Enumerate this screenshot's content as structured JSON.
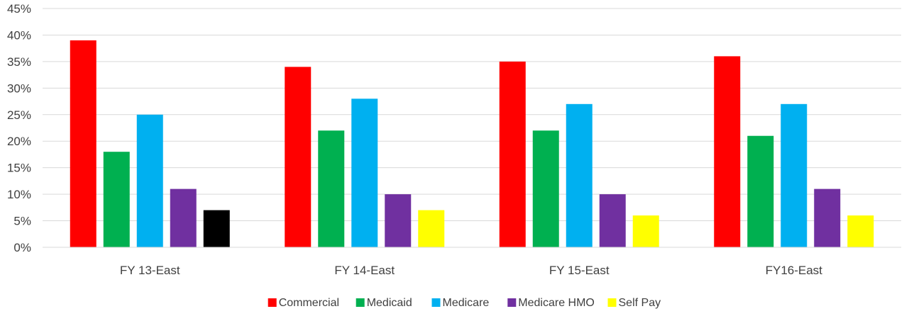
{
  "chart_data": {
    "type": "bar",
    "title": "",
    "xlabel": "",
    "ylabel": "",
    "ylim": [
      0,
      45
    ],
    "y_tick_step": 5,
    "y_tick_format": "percent",
    "grid": true,
    "legend_position": "bottom",
    "categories": [
      "FY 13-East",
      "FY 14-East",
      "FY 15-East",
      "FY16-East"
    ],
    "series": [
      {
        "name": "Commercial",
        "color": "#FF0000",
        "values": [
          39,
          34,
          35,
          36
        ]
      },
      {
        "name": "Medicaid",
        "color": "#00B050",
        "values": [
          18,
          22,
          22,
          21
        ]
      },
      {
        "name": "Medicare",
        "color": "#00B0F0",
        "values": [
          25,
          28,
          27,
          27
        ]
      },
      {
        "name": "Medicare HMO",
        "color": "#7030A0",
        "values": [
          11,
          10,
          10,
          11
        ]
      },
      {
        "name": "Self Pay",
        "color": "#FFFF00",
        "values": [
          7,
          7,
          6,
          6
        ],
        "point_colors": [
          "#000000",
          "#FFFF00",
          "#FFFF00",
          "#FFFF00"
        ]
      }
    ]
  }
}
